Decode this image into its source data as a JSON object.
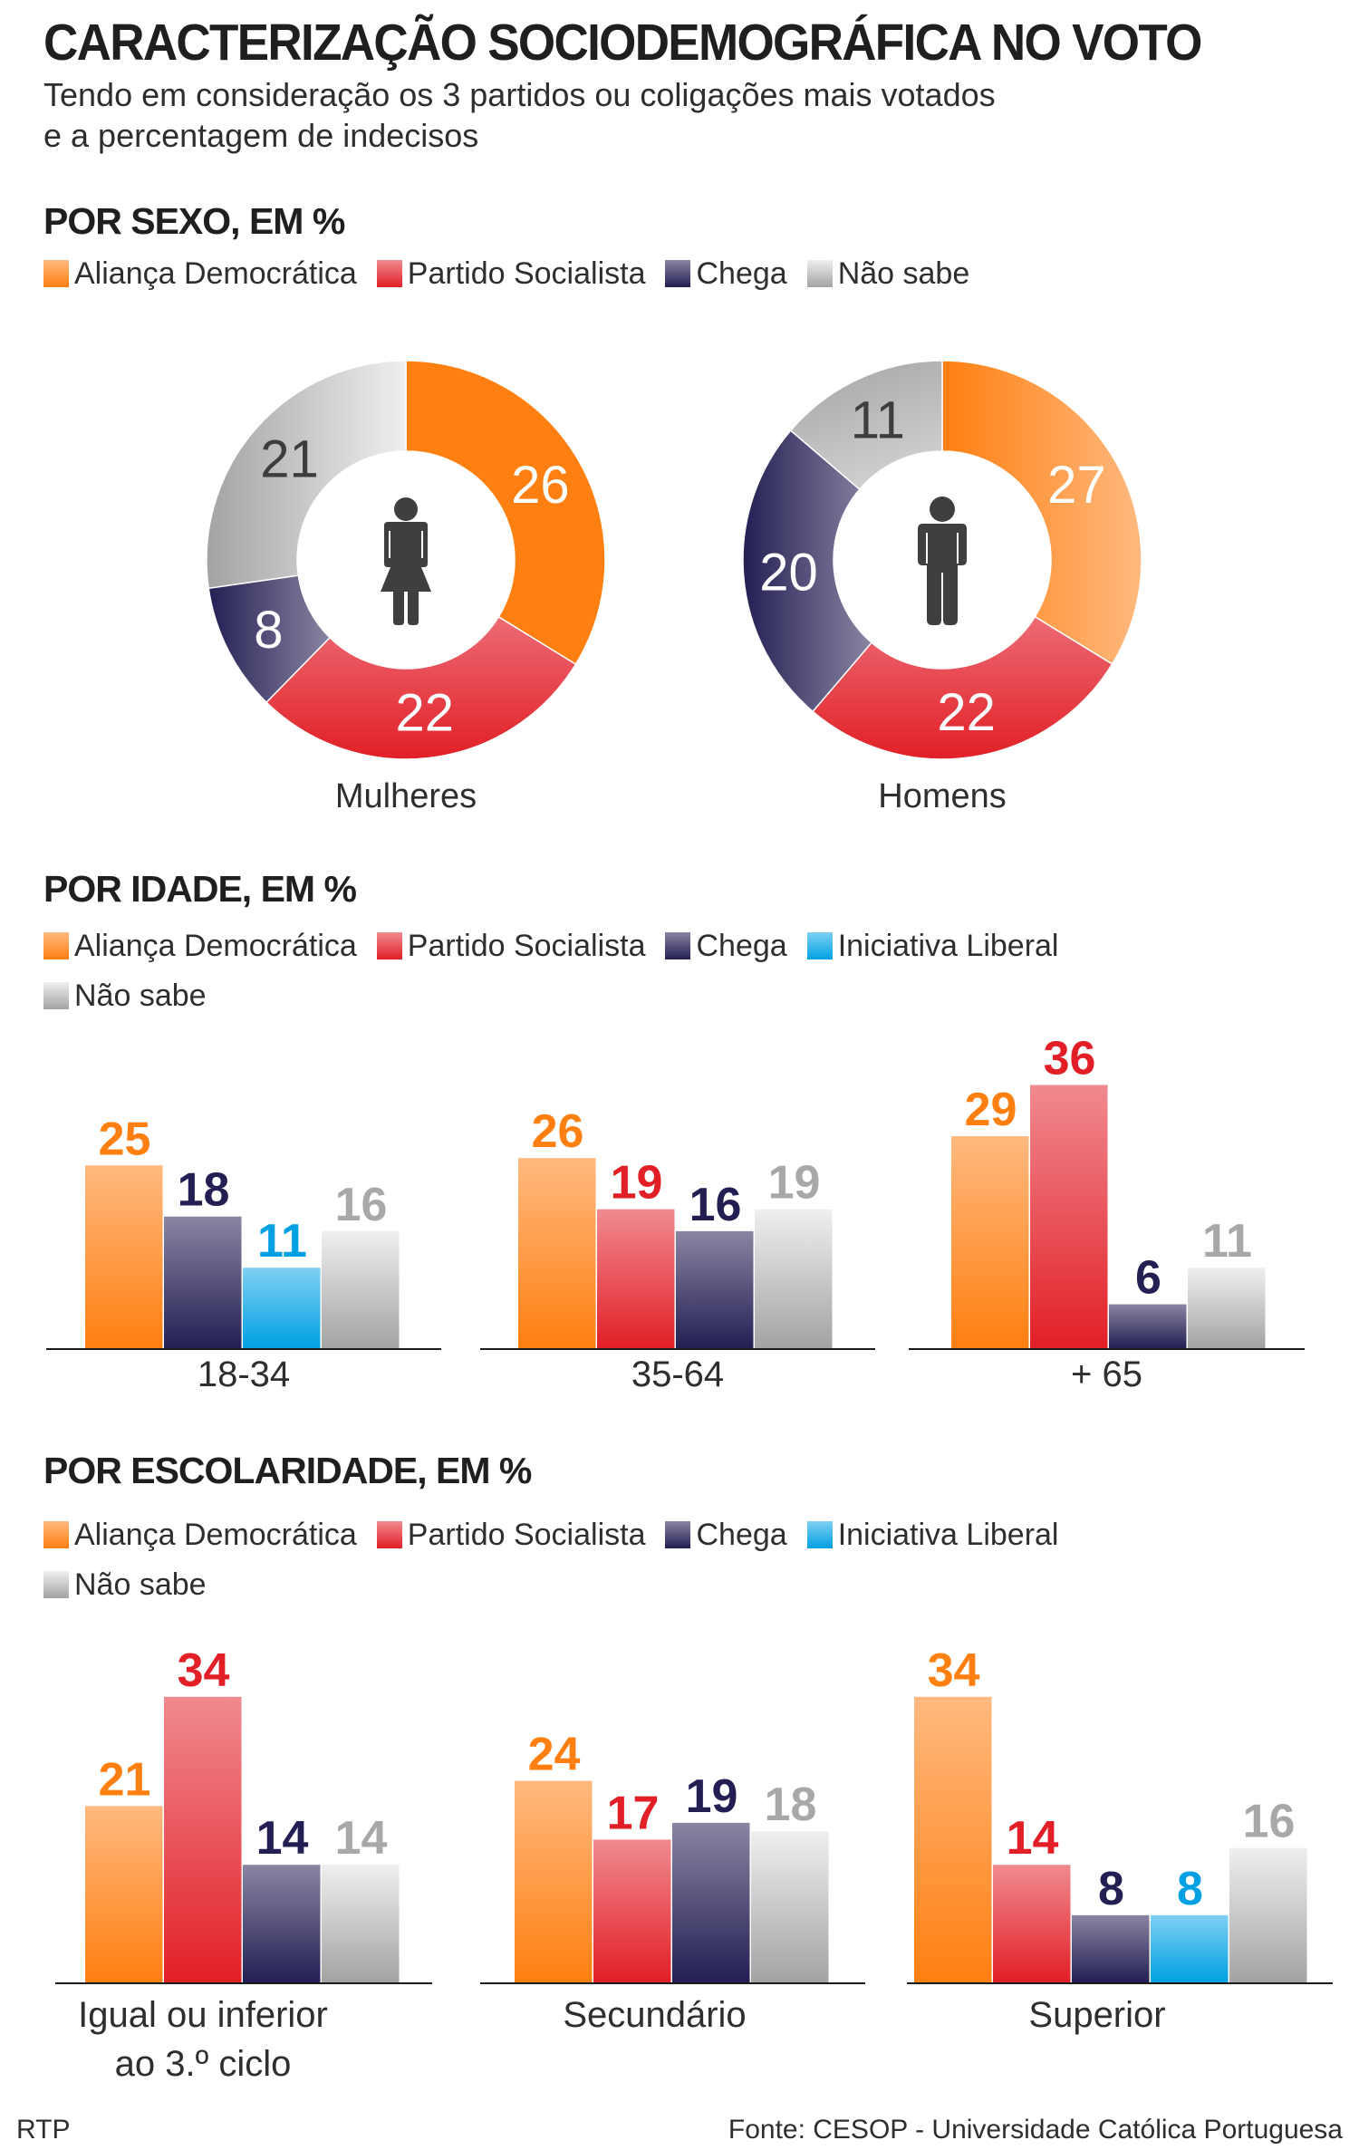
{
  "header": {
    "title": "CARACTERIZAÇÃO SOCIODEMOGRÁFICA NO VOTO",
    "subtitle_line1": "Tendo em consideração os 3 partidos ou coligações mais votados",
    "subtitle_line2": "e a percentagem de indecisos"
  },
  "parties": {
    "ad": {
      "label": "Aliança Democrática",
      "color": "#ff7f11",
      "light": "#ffb97f"
    },
    "ps": {
      "label": "Partido Socialista",
      "color": "#e21f26",
      "light": "#f08a90"
    },
    "ch": {
      "label": "Chega",
      "color": "#231f53",
      "light": "#8a85a2"
    },
    "il": {
      "label": "Iniciativa Liberal",
      "color": "#00a0e3",
      "light": "#7fd0f2"
    },
    "ns": {
      "label": "Não sabe",
      "color": "#a3a3a3",
      "light": "#efefef"
    }
  },
  "sections": {
    "sexo": {
      "title": "POR SEXO, EM %"
    },
    "idade": {
      "title": "POR IDADE, EM %"
    },
    "escolaridade": {
      "title": "POR ESCOLARIDADE, EM %"
    }
  },
  "chart_data": [
    {
      "type": "pie",
      "variant": "donut",
      "title": "Mulheres",
      "icon": "woman-icon",
      "categories": [
        "Aliança Democrática",
        "Partido Socialista",
        "Chega",
        "Não sabe"
      ],
      "keys": [
        "ad",
        "ps",
        "ch",
        "ns"
      ],
      "values": [
        26,
        22,
        8,
        21
      ]
    },
    {
      "type": "pie",
      "variant": "donut",
      "title": "Homens",
      "icon": "man-icon",
      "categories": [
        "Aliança Democrática",
        "Partido Socialista",
        "Chega",
        "Não sabe"
      ],
      "keys": [
        "ad",
        "ps",
        "ch",
        "ns"
      ],
      "values": [
        27,
        22,
        20,
        11
      ]
    },
    {
      "type": "bar",
      "title": "POR IDADE, EM %",
      "ylim": [
        0,
        40
      ],
      "groups": [
        {
          "label": "18-34",
          "bars": [
            {
              "key": "ad",
              "value": 25
            },
            {
              "key": "ch",
              "value": 18
            },
            {
              "key": "il",
              "value": 11
            },
            {
              "key": "ns",
              "value": 16
            }
          ]
        },
        {
          "label": "35-64",
          "bars": [
            {
              "key": "ad",
              "value": 26
            },
            {
              "key": "ps",
              "value": 19
            },
            {
              "key": "ch",
              "value": 16
            },
            {
              "key": "ns",
              "value": 19
            }
          ]
        },
        {
          "label": "+ 65",
          "bars": [
            {
              "key": "ad",
              "value": 29
            },
            {
              "key": "ps",
              "value": 36
            },
            {
              "key": "ch",
              "value": 6
            },
            {
              "key": "ns",
              "value": 11
            }
          ]
        }
      ]
    },
    {
      "type": "bar",
      "title": "POR ESCOLARIDADE, EM %",
      "ylim": [
        0,
        40
      ],
      "groups": [
        {
          "label": "Igual ou inferior",
          "label2": "ao 3.º ciclo",
          "bars": [
            {
              "key": "ad",
              "value": 21
            },
            {
              "key": "ps",
              "value": 34
            },
            {
              "key": "ch",
              "value": 14
            },
            {
              "key": "ns",
              "value": 14
            }
          ]
        },
        {
          "label": "Secundário",
          "bars": [
            {
              "key": "ad",
              "value": 24
            },
            {
              "key": "ps",
              "value": 17
            },
            {
              "key": "ch",
              "value": 19
            },
            {
              "key": "ns",
              "value": 18
            }
          ]
        },
        {
          "label": "Superior",
          "bars": [
            {
              "key": "ad",
              "value": 34
            },
            {
              "key": "ps",
              "value": 14
            },
            {
              "key": "ch",
              "value": 8
            },
            {
              "key": "il",
              "value": 8
            },
            {
              "key": "ns",
              "value": 16
            }
          ]
        }
      ]
    }
  ],
  "footer": {
    "left": "RTP",
    "right": "Fonte: CESOP - Universidade Católica Portuguesa"
  }
}
